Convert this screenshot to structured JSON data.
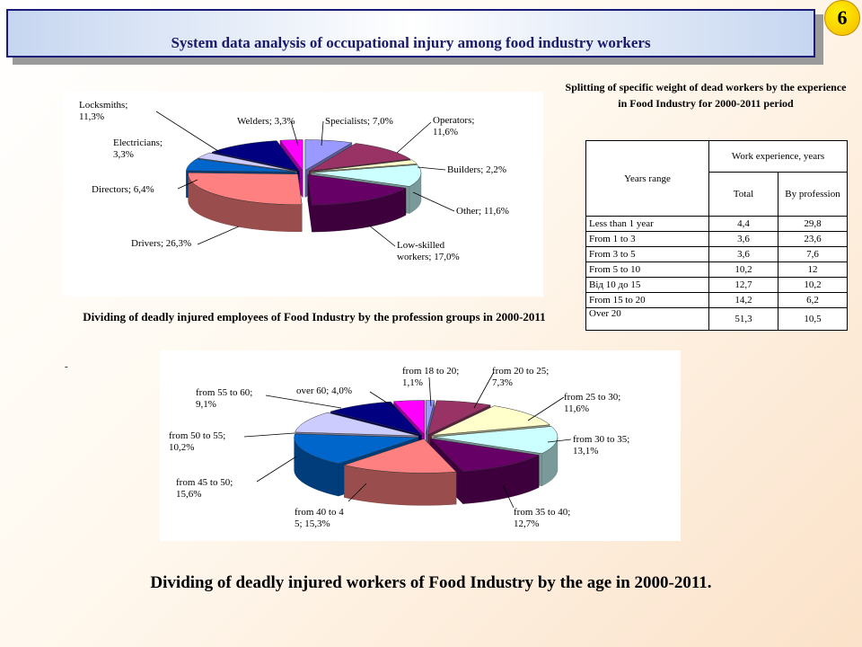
{
  "slide": {
    "title": "System data analysis of occupational injury among food industry workers",
    "page_number": "6",
    "caption_profession": "Dividing of deadly injured employees of Food Industry by the profession groups in 2000-2011",
    "caption_age": "Dividing of deadly injured workers of Food Industry by the age in 2000-2011.",
    "stray_mark": "-"
  },
  "table": {
    "title": "Splitting of specific weight of dead workers by the experience in Food Industry for 2000-2011 period",
    "col_range": "Years range",
    "col_group": "Work experience, years",
    "col_total": "Total",
    "col_profession": "By profession",
    "rows": [
      {
        "range": "Less than 1 year",
        "total": "4,4",
        "profession": "29,8"
      },
      {
        "range": "From 1 to 3",
        "total": "3,6",
        "profession": "23,6"
      },
      {
        "range": "From 3 to 5",
        "total": "3,6",
        "profession": "7,6"
      },
      {
        "range": "From 5 to 10",
        "total": "10,2",
        "profession": "12"
      },
      {
        "range": "Від 10 до 15",
        "total": "12,7",
        "profession": "10,2"
      },
      {
        "range": "From 15 to 20",
        "total": "14,2",
        "profession": "6,2"
      },
      {
        "range": "Over 20",
        "total": "51,3",
        "profession": "10,5"
      }
    ]
  },
  "chart_data": [
    {
      "type": "pie",
      "title": "",
      "slices": [
        {
          "label": "Specialists; 7,0%",
          "value": 7.0,
          "color": "#9999ff"
        },
        {
          "label": "Operators; 11,6%",
          "value": 11.6,
          "color": "#993366"
        },
        {
          "label": "Builders; 2,2%",
          "value": 2.2,
          "color": "#ffffcc"
        },
        {
          "label": "Other; 11,6%",
          "value": 11.6,
          "color": "#ccffff"
        },
        {
          "label": "Low-skilled workers; 17,0%",
          "value": 17.0,
          "color": "#660066"
        },
        {
          "label": "Drivers; 26,3%",
          "value": 26.3,
          "color": "#ff8080"
        },
        {
          "label": "Directors; 6,4%",
          "value": 6.4,
          "color": "#0066cc"
        },
        {
          "label": "Electricians; 3,3%",
          "value": 3.3,
          "color": "#ccccff"
        },
        {
          "label": "Locksmiths; 11,3%",
          "value": 11.3,
          "color": "#000080"
        },
        {
          "label": "Welders; 3,3%",
          "value": 3.3,
          "color": "#ff00ff"
        }
      ]
    },
    {
      "type": "pie",
      "title": "",
      "slices": [
        {
          "label": "from 18 to 20; 1,1%",
          "value": 1.1,
          "color": "#9999ff"
        },
        {
          "label": "from 20 to 25; 7,3%",
          "value": 7.3,
          "color": "#993366"
        },
        {
          "label": "from 25 to 30; 11,6%",
          "value": 11.6,
          "color": "#ffffcc"
        },
        {
          "label": "from 30 to 35; 13,1%",
          "value": 13.1,
          "color": "#ccffff"
        },
        {
          "label": "from 35 to 40; 12,7%",
          "value": 12.7,
          "color": "#660066"
        },
        {
          "label": "from 40 to 45; 15,3%",
          "value": 15.3,
          "color": "#ff8080"
        },
        {
          "label": "from 45 to 50; 15,6%",
          "value": 15.6,
          "color": "#0066cc"
        },
        {
          "label": "from 50 to 55; 10,2%",
          "value": 10.2,
          "color": "#ccccff"
        },
        {
          "label": "from 55 to 60; 9,1%",
          "value": 9.1,
          "color": "#000080"
        },
        {
          "label": "over 60; 4,0%",
          "value": 4.0,
          "color": "#ff00ff"
        }
      ]
    }
  ]
}
